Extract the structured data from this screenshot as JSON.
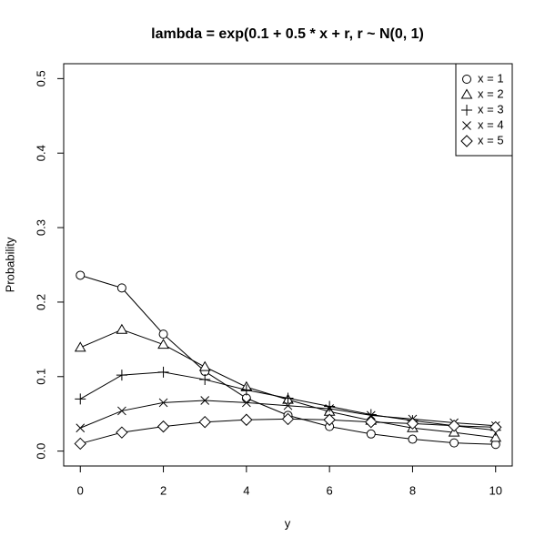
{
  "chart_data": {
    "type": "line",
    "title": "lambda = exp(0.1 + 0.5 * x + r, r ~ N(0, 1)",
    "x_label": "y",
    "y_label": "Probability",
    "x": [
      0,
      1,
      2,
      3,
      4,
      5,
      6,
      7,
      8,
      9,
      10
    ],
    "series": [
      {
        "name": "x = 1",
        "color": "#000000",
        "shape": "circle",
        "values": [
          0.236,
          0.219,
          0.157,
          0.107,
          0.071,
          0.048,
          0.033,
          0.023,
          0.016,
          0.011,
          0.009
        ]
      },
      {
        "name": "x = 2",
        "color": "#000000",
        "shape": "triangle",
        "values": [
          0.139,
          0.163,
          0.143,
          0.113,
          0.086,
          0.069,
          0.053,
          0.041,
          0.031,
          0.025,
          0.018
        ]
      },
      {
        "name": "x = 3",
        "color": "#000000",
        "shape": "plus",
        "values": [
          0.07,
          0.102,
          0.106,
          0.096,
          0.082,
          0.071,
          0.06,
          0.049,
          0.041,
          0.034,
          0.028
        ]
      },
      {
        "name": "x = 4",
        "color": "#000000",
        "shape": "cross",
        "values": [
          0.031,
          0.054,
          0.065,
          0.068,
          0.065,
          0.061,
          0.057,
          0.048,
          0.043,
          0.038,
          0.034
        ]
      },
      {
        "name": "x = 5",
        "color": "#000000",
        "shape": "diamond",
        "values": [
          0.01,
          0.025,
          0.033,
          0.039,
          0.042,
          0.043,
          0.042,
          0.039,
          0.037,
          0.034,
          0.032
        ]
      }
    ],
    "xlim": [
      -0.4,
      10.4
    ],
    "xticks": [
      0,
      2,
      4,
      6,
      8,
      10
    ],
    "ylim": [
      -0.02,
      0.52
    ],
    "yticks": [
      {
        "value": 0,
        "label": "0.0"
      },
      0.1,
      0.2,
      0.3,
      0.4,
      0.5
    ],
    "grid": false,
    "legend": "top-right"
  }
}
